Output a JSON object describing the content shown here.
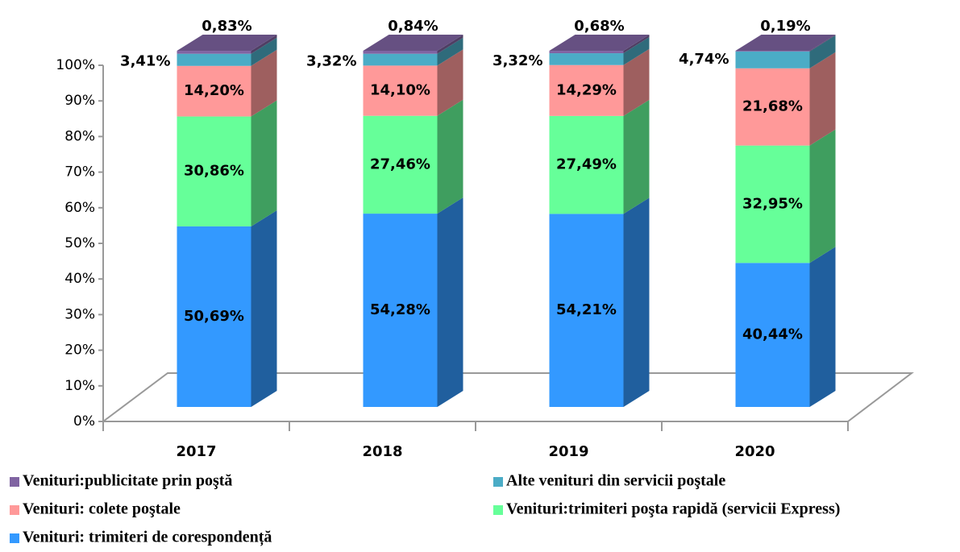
{
  "chart_data": {
    "type": "bar3d_stacked",
    "categories": [
      "2017",
      "2018",
      "2019",
      "2020"
    ],
    "series": [
      {
        "name": "Venituri: trimiteri de corespondență",
        "color": "#3399ff",
        "values": [
          50.69,
          54.28,
          54.21,
          40.44
        ],
        "value_labels": [
          "50,69%",
          "54,28%",
          "54,21%",
          "40,44%"
        ]
      },
      {
        "name": "Venituri:trimiteri poşta rapidă (servicii Express)",
        "color": "#66ff99",
        "values": [
          30.86,
          27.46,
          27.49,
          32.95
        ],
        "value_labels": [
          "30,86%",
          "27,46%",
          "27,49%",
          "32,95%"
        ]
      },
      {
        "name": "Venituri: colete poştale",
        "color": "#ff9999",
        "values": [
          14.2,
          14.1,
          14.29,
          21.68
        ],
        "value_labels": [
          "14,20%",
          "14,10%",
          "14,29%",
          "21,68%"
        ]
      },
      {
        "name": "Alte venituri din servicii poştale",
        "color": "#4bacc6",
        "values": [
          3.41,
          3.32,
          3.32,
          4.74
        ],
        "value_labels": [
          "3,41%",
          "3,32%",
          "3,32%",
          "4,74%"
        ]
      },
      {
        "name": "Venituri:publicitate prin poştă",
        "color": "#8064a2",
        "values": [
          0.83,
          0.84,
          0.68,
          0.19
        ],
        "value_labels": [
          "0,83%",
          "0,84%",
          "0,68%",
          "0,19%"
        ]
      }
    ],
    "ylim": [
      0,
      100
    ],
    "yticks": [
      {
        "value": 0,
        "label": "0%"
      },
      {
        "value": 10,
        "label": "10%"
      },
      {
        "value": 20,
        "label": "20%"
      },
      {
        "value": 30,
        "label": "30%"
      },
      {
        "value": 40,
        "label": "40%"
      },
      {
        "value": 50,
        "label": "50%"
      },
      {
        "value": 60,
        "label": "60%"
      },
      {
        "value": 70,
        "label": "70%"
      },
      {
        "value": 80,
        "label": "80%"
      },
      {
        "value": 90,
        "label": "90%"
      },
      {
        "value": 100,
        "label": "100%"
      }
    ]
  }
}
